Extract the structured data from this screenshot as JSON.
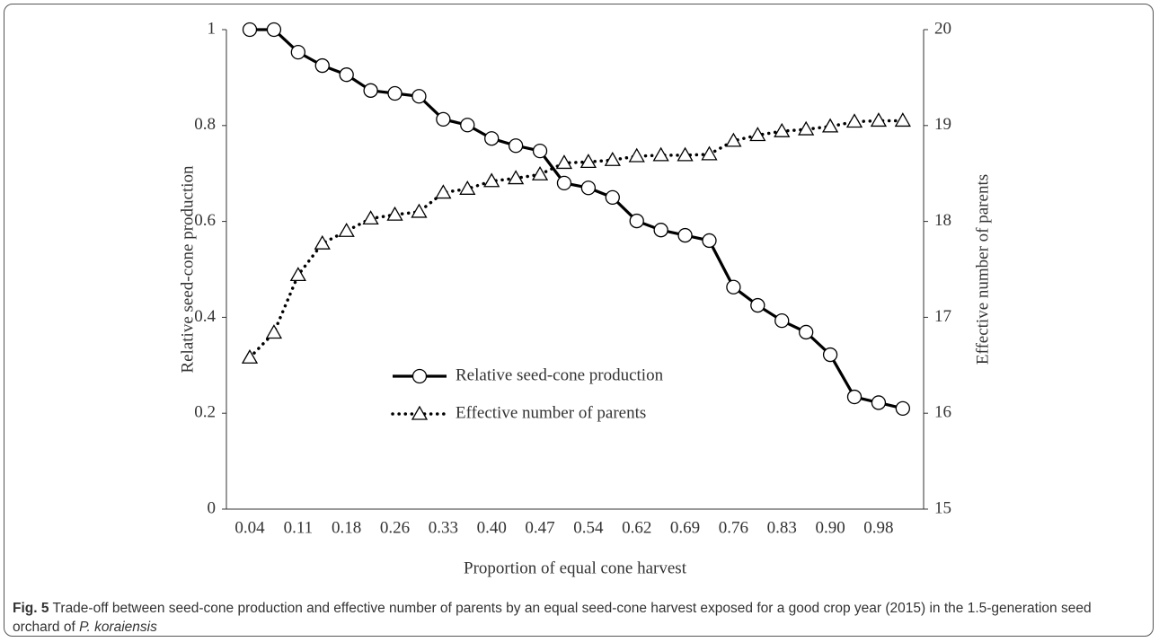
{
  "chart_data": {
    "type": "line",
    "categories": [
      "0.04",
      null,
      "0.11",
      null,
      "0.18",
      null,
      "0.26",
      null,
      "0.33",
      null,
      "0.40",
      null,
      "0.47",
      null,
      "0.54",
      null,
      "0.62",
      null,
      "0.69",
      null,
      "0.76",
      null,
      "0.83",
      null,
      "0.90",
      null,
      "0.98",
      null
    ],
    "series": [
      {
        "name": "Relative seed-cone production",
        "color": "#000000",
        "line_style": "solid",
        "marker": "circle",
        "axis": "y",
        "values": [
          1.0,
          1.0,
          0.953,
          0.925,
          0.906,
          0.873,
          0.867,
          0.861,
          0.813,
          0.801,
          0.773,
          0.758,
          0.747,
          0.68,
          0.67,
          0.65,
          0.601,
          0.582,
          0.571,
          0.56,
          0.463,
          0.425,
          0.393,
          0.369,
          0.322,
          0.234,
          0.222,
          0.21
        ]
      },
      {
        "name": "Effective number of parents",
        "color": "#000000",
        "line_style": "dotted",
        "marker": "triangle",
        "axis": "y2",
        "values": [
          16.58,
          16.84,
          17.44,
          17.77,
          17.9,
          18.03,
          18.07,
          18.1,
          18.3,
          18.34,
          18.42,
          18.45,
          18.49,
          18.61,
          18.62,
          18.64,
          18.68,
          18.69,
          18.69,
          18.7,
          18.84,
          18.9,
          18.94,
          18.96,
          18.99,
          19.04,
          19.05,
          19.05
        ]
      }
    ],
    "ylabel": "Relative seed-cone production",
    "y2label": "Effective number of parents",
    "xlabel": "Proportion of equal cone harvest",
    "ylim": [
      0,
      1
    ],
    "yticks": [
      0,
      0.2,
      0.4,
      0.6,
      0.8,
      1
    ],
    "y2lim": [
      15,
      20
    ],
    "y2ticks": [
      15,
      16,
      17,
      18,
      19,
      20
    ],
    "grid": false
  },
  "caption": {
    "label": "Fig. 5",
    "text": " Trade-off between seed-cone production and effective number of parents by an equal seed-cone harvest exposed for a good crop year (2015) in the 1.5-generation seed orchard of ",
    "species": "P. koraiensis"
  }
}
